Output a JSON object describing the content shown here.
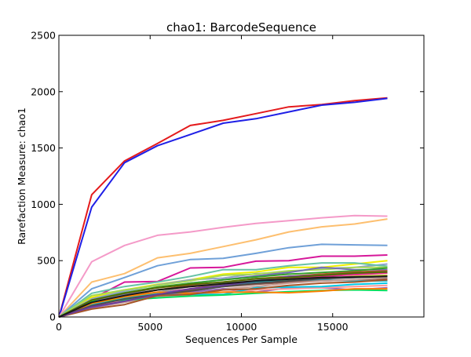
{
  "chart_data": {
    "type": "line",
    "title": "chao1: BarcodeSequence",
    "xlabel": "Sequences Per Sample",
    "ylabel": "Rarefaction Measure: chao1",
    "xlim": [
      0,
      20000
    ],
    "ylim": [
      0,
      2500
    ],
    "xticks": [
      0,
      5000,
      10000,
      15000
    ],
    "xtick_labels": [
      "0",
      "5000",
      "10000",
      "15000"
    ],
    "yticks": [
      0,
      500,
      1000,
      1500,
      2000,
      2500
    ],
    "ytick_labels": [
      "0",
      "500",
      "1000",
      "1500",
      "2000",
      "2500"
    ],
    "grid": false,
    "legend": "none",
    "x": [
      10,
      1800,
      3600,
      5400,
      7200,
      9000,
      10800,
      12600,
      14400,
      16200,
      18000
    ],
    "series": [
      {
        "color": "#e41a1c",
        "values": [
          0,
          1085,
          1385,
          1540,
          1700,
          1745,
          1805,
          1865,
          1885,
          1920,
          1945
        ]
      },
      {
        "color": "#1f1fe6",
        "values": [
          0,
          975,
          1370,
          1520,
          1620,
          1720,
          1760,
          1820,
          1880,
          1905,
          1940
        ]
      },
      {
        "color": "#f49ac8",
        "values": [
          0,
          490,
          635,
          725,
          755,
          795,
          830,
          855,
          880,
          900,
          895
        ]
      },
      {
        "color": "#fdbf6f",
        "values": [
          0,
          310,
          385,
          525,
          565,
          625,
          685,
          755,
          800,
          825,
          870
        ]
      },
      {
        "color": "#6fa0d8",
        "values": [
          0,
          250,
          350,
          455,
          510,
          520,
          565,
          615,
          645,
          640,
          635
        ]
      },
      {
        "color": "#d6189a",
        "values": [
          0,
          160,
          310,
          315,
          435,
          440,
          495,
          500,
          540,
          540,
          550
        ]
      },
      {
        "color": "#f0f000",
        "values": [
          0,
          175,
          240,
          290,
          330,
          380,
          400,
          440,
          440,
          470,
          500
        ]
      },
      {
        "color": "#8da0cb",
        "values": [
          0,
          160,
          230,
          285,
          330,
          345,
          385,
          400,
          430,
          440,
          470
        ]
      },
      {
        "color": "#66c2a5",
        "values": [
          0,
          210,
          270,
          310,
          360,
          420,
          420,
          455,
          480,
          480,
          450
        ]
      },
      {
        "color": "#a6d854",
        "values": [
          0,
          190,
          240,
          280,
          320,
          370,
          380,
          410,
          420,
          440,
          440
        ]
      },
      {
        "color": "#7570b3",
        "values": [
          0,
          140,
          200,
          260,
          300,
          330,
          365,
          395,
          440,
          420,
          420
        ]
      },
      {
        "color": "#33a02c",
        "values": [
          0,
          150,
          215,
          265,
          300,
          330,
          355,
          380,
          395,
          410,
          435
        ]
      },
      {
        "color": "#b15928",
        "values": [
          0,
          120,
          180,
          240,
          280,
          310,
          340,
          360,
          380,
          400,
          410
        ]
      },
      {
        "color": "#999999",
        "values": [
          0,
          110,
          170,
          220,
          270,
          300,
          330,
          350,
          370,
          385,
          400
        ]
      },
      {
        "color": "#e7298a",
        "values": [
          0,
          100,
          160,
          210,
          250,
          290,
          320,
          345,
          360,
          375,
          390
        ]
      },
      {
        "color": "#bcbd22",
        "values": [
          0,
          130,
          190,
          240,
          270,
          290,
          300,
          330,
          340,
          360,
          370
        ]
      },
      {
        "color": "#17becf",
        "values": [
          0,
          120,
          170,
          210,
          240,
          280,
          310,
          320,
          330,
          320,
          320
        ]
      },
      {
        "color": "#8c564b",
        "values": [
          0,
          90,
          150,
          200,
          240,
          270,
          290,
          310,
          320,
          330,
          340
        ]
      },
      {
        "color": "#c49c94",
        "values": [
          0,
          80,
          130,
          180,
          220,
          250,
          270,
          300,
          320,
          330,
          350
        ]
      },
      {
        "color": "#9467bd",
        "values": [
          0,
          80,
          140,
          190,
          220,
          250,
          220,
          260,
          260,
          240,
          260
        ]
      },
      {
        "color": "#fb9a99",
        "values": [
          0,
          100,
          150,
          170,
          200,
          220,
          240,
          250,
          260,
          270,
          280
        ]
      },
      {
        "color": "#00c9e8",
        "values": [
          0,
          110,
          160,
          190,
          200,
          200,
          260,
          265,
          270,
          290,
          300
        ]
      },
      {
        "color": "#00e060",
        "values": [
          0,
          140,
          150,
          170,
          185,
          195,
          210,
          225,
          235,
          240,
          235
        ]
      },
      {
        "color": "#ff7f00",
        "values": [
          0,
          120,
          180,
          220,
          210,
          220,
          220,
          215,
          230,
          250,
          250
        ]
      },
      {
        "color": "#a65628",
        "values": [
          0,
          70,
          110,
          190,
          200,
          240,
          250,
          280,
          300,
          310,
          330
        ]
      },
      {
        "color": "#4d4d4d",
        "values": [
          0,
          100,
          160,
          200,
          230,
          270,
          300,
          320,
          340,
          350,
          360
        ]
      },
      {
        "color": "#6a3d9a",
        "values": [
          0,
          90,
          140,
          200,
          250,
          280,
          320,
          360,
          370,
          390,
          400
        ]
      },
      {
        "color": "#556b00",
        "values": [
          0,
          150,
          210,
          260,
          290,
          310,
          340,
          350,
          370,
          390,
          400
        ]
      },
      {
        "color": "#1a1a1a",
        "values": [
          0,
          130,
          190,
          240,
          270,
          295,
          320,
          335,
          350,
          355,
          360
        ]
      }
    ]
  }
}
